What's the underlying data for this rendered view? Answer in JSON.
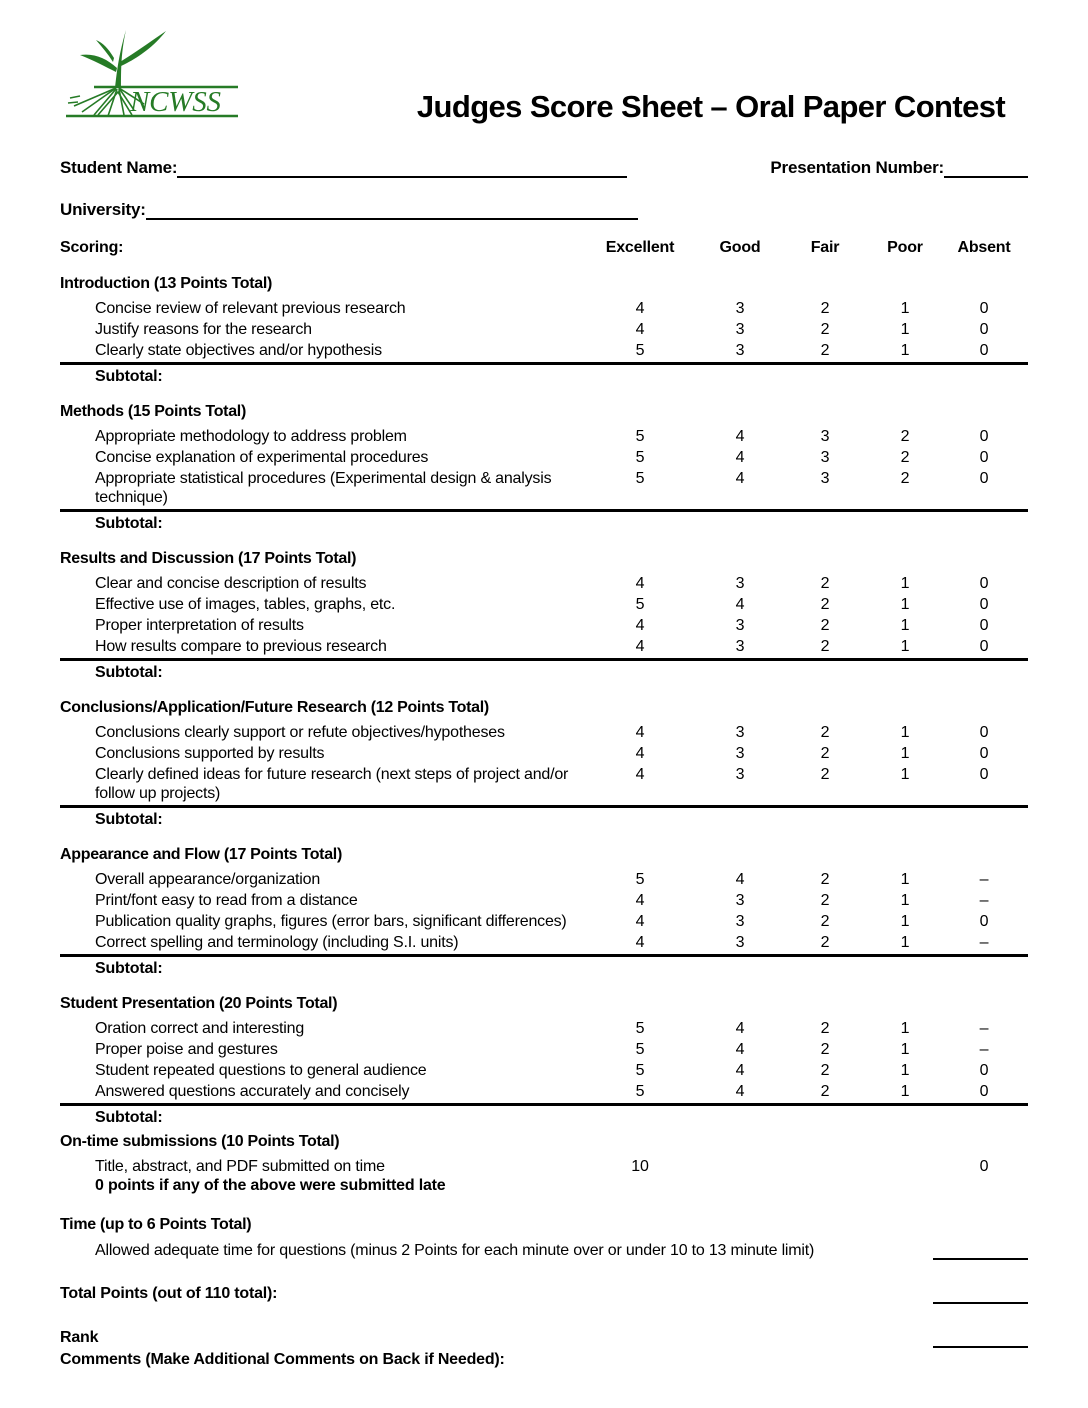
{
  "logo": {
    "text": "NCWSS",
    "color": "#267b26"
  },
  "page": {
    "title": "Judges Score Sheet – Oral Paper Contest"
  },
  "fields": {
    "student_name_label": "Student Name:",
    "presentation_number_label": "Presentation Number:",
    "university_label": "University:"
  },
  "table": {
    "scoring_label": "Scoring:",
    "columns": [
      "Excellent",
      "Good",
      "Fair",
      "Poor",
      "Absent"
    ],
    "subtotal_label": "Subtotal:",
    "sections": [
      {
        "title": "Introduction (13 Points Total)",
        "rows": [
          {
            "desc": "Concise review of relevant previous research",
            "scores": [
              "4",
              "3",
              "2",
              "1",
              "0"
            ]
          },
          {
            "desc": "Justify reasons for the research",
            "scores": [
              "4",
              "3",
              "2",
              "1",
              "0"
            ]
          },
          {
            "desc": "Clearly state objectives and/or hypothesis",
            "scores": [
              "5",
              "3",
              "2",
              "1",
              "0"
            ]
          }
        ]
      },
      {
        "title": "Methods (15 Points Total)",
        "rows": [
          {
            "desc": "Appropriate methodology to address problem",
            "scores": [
              "5",
              "4",
              "3",
              "2",
              "0"
            ]
          },
          {
            "desc": "Concise explanation of experimental procedures",
            "scores": [
              "5",
              "4",
              "3",
              "2",
              "0"
            ]
          },
          {
            "desc": "Appropriate statistical procedures (Experimental design & analysis technique)",
            "scores": [
              "5",
              "4",
              "3",
              "2",
              "0"
            ]
          }
        ]
      },
      {
        "title": "Results and Discussion (17 Points Total)",
        "rows": [
          {
            "desc": "Clear and concise description of results",
            "scores": [
              "4",
              "3",
              "2",
              "1",
              "0"
            ]
          },
          {
            "desc": "Effective use of images, tables, graphs, etc.",
            "scores": [
              "5",
              "4",
              "2",
              "1",
              "0"
            ]
          },
          {
            "desc": "Proper interpretation of results",
            "scores": [
              "4",
              "3",
              "2",
              "1",
              "0"
            ]
          },
          {
            "desc": "How results compare to previous research",
            "scores": [
              "4",
              "3",
              "2",
              "1",
              "0"
            ]
          }
        ]
      },
      {
        "title": "Conclusions/Application/Future Research (12 Points Total)",
        "rows": [
          {
            "desc": "Conclusions clearly support or refute objectives/hypotheses",
            "scores": [
              "4",
              "3",
              "2",
              "1",
              "0"
            ]
          },
          {
            "desc": "Conclusions supported by results",
            "scores": [
              "4",
              "3",
              "2",
              "1",
              "0"
            ]
          },
          {
            "desc": "Clearly defined ideas for future research (next steps of project and/or follow up projects)",
            "scores": [
              "4",
              "3",
              "2",
              "1",
              "0"
            ]
          }
        ]
      },
      {
        "title": "Appearance and Flow (17 Points Total)",
        "rows": [
          {
            "desc": "Overall appearance/organization",
            "scores": [
              "5",
              "4",
              "2",
              "1",
              "–"
            ]
          },
          {
            "desc": "Print/font easy to read from a distance",
            "scores": [
              "4",
              "3",
              "2",
              "1",
              "–"
            ]
          },
          {
            "desc": "Publication quality graphs, figures (error bars, significant differences)",
            "scores": [
              "4",
              "3",
              "2",
              "1",
              "0"
            ]
          },
          {
            "desc": "Correct spelling and terminology (including S.I. units)",
            "scores": [
              "4",
              "3",
              "2",
              "1",
              "–"
            ]
          }
        ]
      },
      {
        "title": "Student Presentation (20 Points Total)",
        "rows": [
          {
            "desc": "Oration correct and interesting",
            "scores": [
              "5",
              "4",
              "2",
              "1",
              "–"
            ]
          },
          {
            "desc": "Proper poise and gestures",
            "scores": [
              "5",
              "4",
              "2",
              "1",
              "–"
            ]
          },
          {
            "desc": "Student repeated questions to general audience",
            "scores": [
              "5",
              "4",
              "2",
              "1",
              "0"
            ]
          },
          {
            "desc": "Answered questions accurately and concisely",
            "scores": [
              "5",
              "4",
              "2",
              "1",
              "0"
            ]
          }
        ]
      }
    ]
  },
  "on_time": {
    "title": "On-time submissions (10 Points Total)",
    "line1": "Title, abstract, and PDF submitted on time",
    "line2": "0 points if any of the above were submitted late",
    "scores": [
      "10",
      "",
      "",
      "",
      "0"
    ]
  },
  "time": {
    "title": "Time (up to 6 Points Total)",
    "desc": "Allowed adequate time for questions (minus 2 Points for each minute over or under 10 to 13 minute limit)"
  },
  "footer": {
    "total_label": "Total Points (out of 110 total):",
    "rank_label": "Rank",
    "comments_label": "Comments (Make Additional Comments on Back if Needed):"
  }
}
